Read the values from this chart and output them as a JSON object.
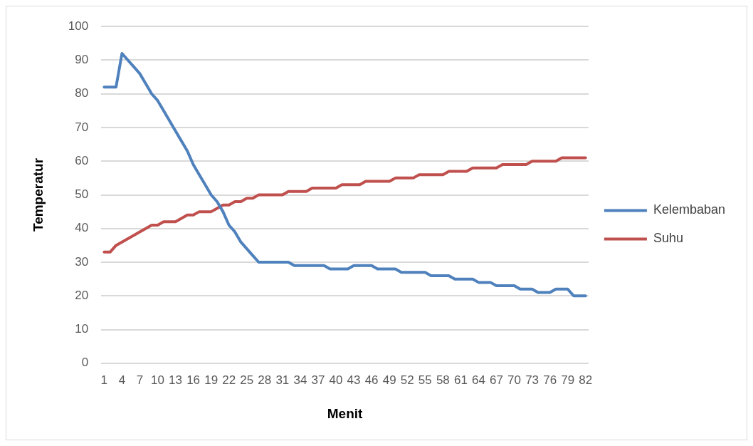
{
  "chart_data": {
    "type": "line",
    "xlabel": "Menit",
    "ylabel": "Temperatur",
    "categories": [
      "1",
      null,
      null,
      "4",
      null,
      null,
      "7",
      null,
      null,
      "10",
      null,
      null,
      "13",
      null,
      null,
      "16",
      null,
      null,
      "19",
      null,
      null,
      "22",
      null,
      null,
      "25",
      null,
      null,
      "28",
      null,
      null,
      "31",
      null,
      null,
      "34",
      null,
      null,
      "37",
      null,
      null,
      "40",
      null,
      null,
      "43",
      null,
      null,
      "46",
      null,
      null,
      "49",
      null,
      null,
      "52",
      null,
      null,
      "55",
      null,
      null,
      "58",
      null,
      null,
      "61",
      null,
      null,
      "64",
      null,
      null,
      "67",
      null,
      null,
      "70",
      null,
      null,
      "73",
      null,
      null,
      "76",
      null,
      null,
      "79",
      null,
      null,
      "82"
    ],
    "series": [
      {
        "name": "Kelembaban",
        "color": "#4f81bd",
        "values": [
          82,
          82,
          82,
          92,
          90,
          88,
          86,
          83,
          80,
          78,
          75,
          72,
          69,
          66,
          63,
          59,
          56,
          53,
          50,
          48,
          45,
          41,
          39,
          36,
          34,
          32,
          30,
          30,
          30,
          30,
          30,
          30,
          29,
          29,
          29,
          29,
          29,
          29,
          28,
          28,
          28,
          28,
          29,
          29,
          29,
          29,
          28,
          28,
          28,
          28,
          27,
          27,
          27,
          27,
          27,
          26,
          26,
          26,
          26,
          25,
          25,
          25,
          25,
          24,
          24,
          24,
          23,
          23,
          23,
          23,
          22,
          22,
          22,
          21,
          21,
          21,
          22,
          22,
          22,
          20,
          20,
          20
        ]
      },
      {
        "name": "Suhu",
        "color": "#c0504d",
        "values": [
          33,
          33,
          35,
          36,
          37,
          38,
          39,
          40,
          41,
          41,
          42,
          42,
          42,
          43,
          44,
          44,
          45,
          45,
          45,
          46,
          47,
          47,
          48,
          48,
          49,
          49,
          50,
          50,
          50,
          50,
          50,
          51,
          51,
          51,
          51,
          52,
          52,
          52,
          52,
          52,
          53,
          53,
          53,
          53,
          54,
          54,
          54,
          54,
          54,
          55,
          55,
          55,
          55,
          56,
          56,
          56,
          56,
          56,
          57,
          57,
          57,
          57,
          58,
          58,
          58,
          58,
          58,
          59,
          59,
          59,
          59,
          59,
          60,
          60,
          60,
          60,
          60,
          61,
          61,
          61,
          61,
          61
        ]
      }
    ],
    "ylim": [
      0,
      100
    ],
    "yticks": [
      0,
      10,
      20,
      30,
      40,
      50,
      60,
      70,
      80,
      90,
      100
    ],
    "grid": "y",
    "legend": "right",
    "marker": "none",
    "line_style": "solid"
  }
}
